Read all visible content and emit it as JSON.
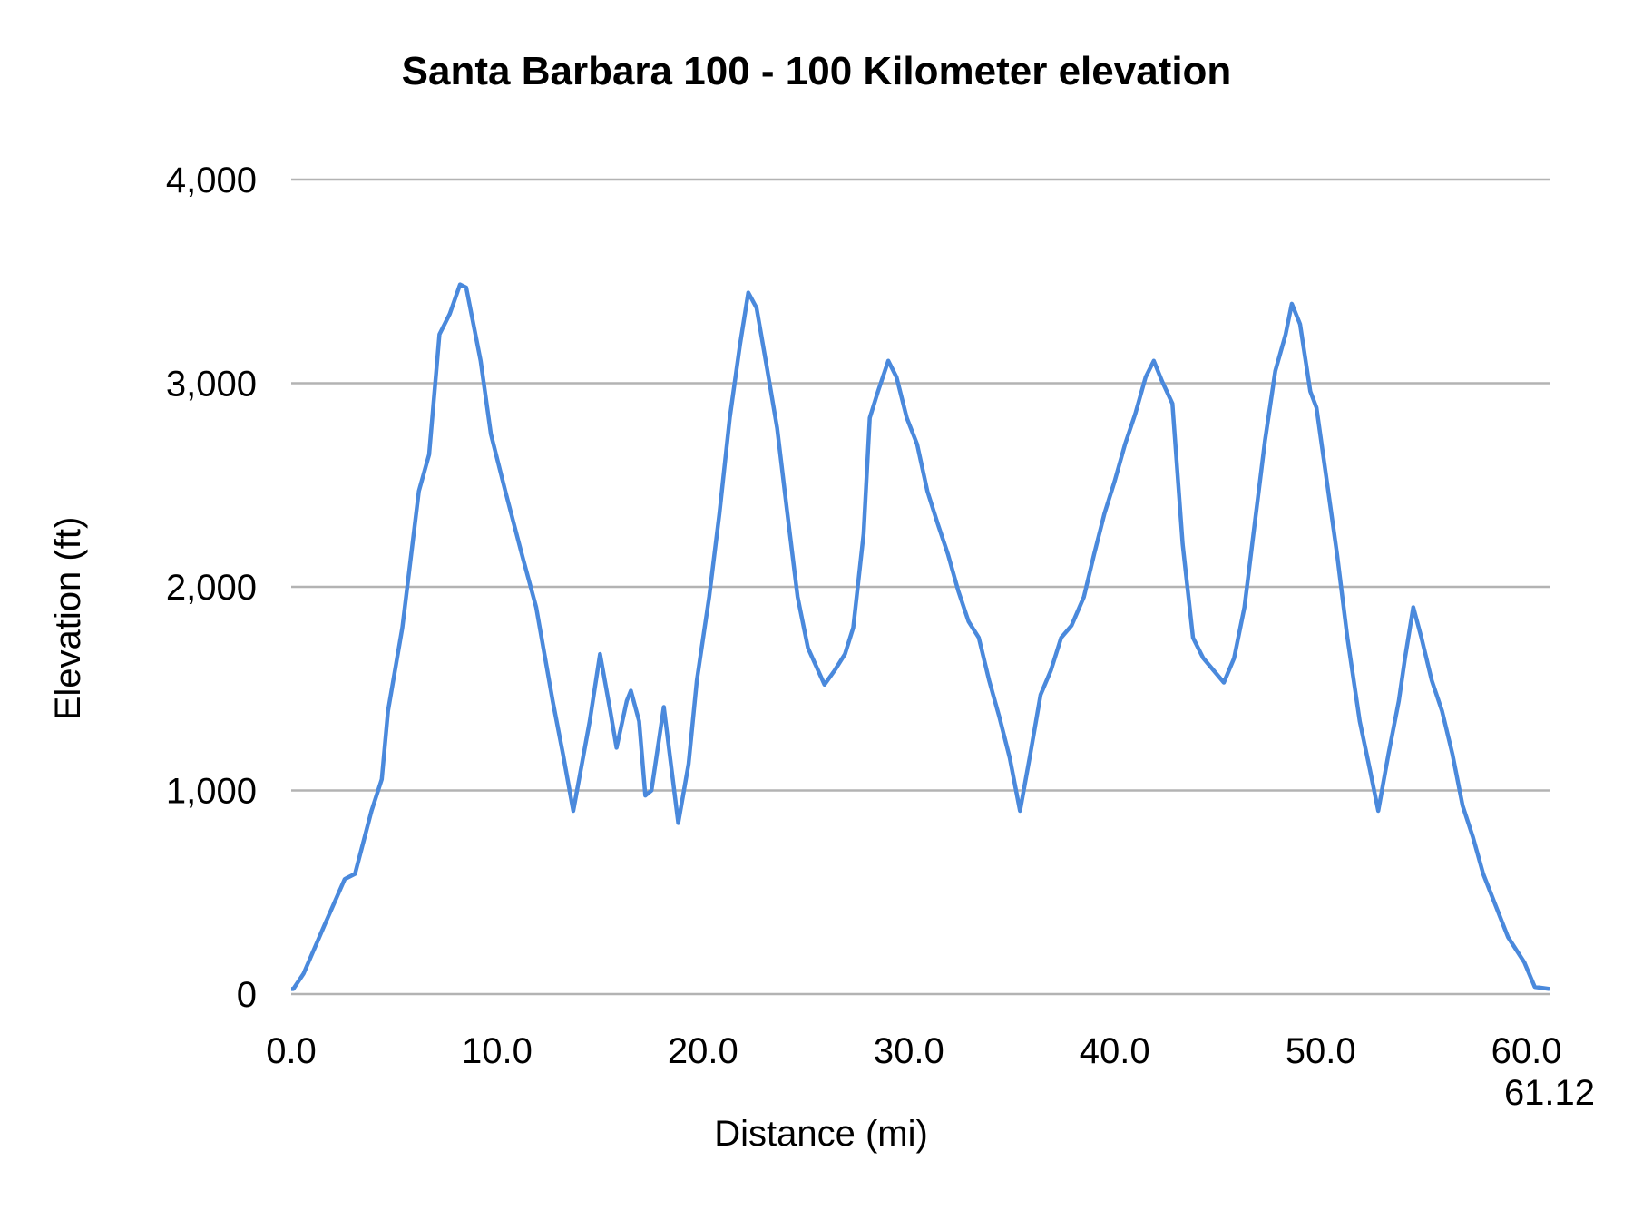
{
  "chart_data": {
    "type": "line",
    "title": "Santa Barbara 100 - 100 Kilometer elevation",
    "xlabel": "Distance (mi)",
    "ylabel": "Elevation (ft)",
    "xlim": [
      0,
      61.12
    ],
    "ylim": [
      0,
      4000
    ],
    "x_ticks": [
      "0.0",
      "10.0",
      "20.0",
      "30.0",
      "40.0",
      "50.0",
      "60.0",
      "61.12"
    ],
    "x_tick_values": [
      0,
      10,
      20,
      30,
      40,
      50,
      60,
      61.12
    ],
    "y_ticks": [
      "0",
      "1,000",
      "2,000",
      "3,000",
      "4,000"
    ],
    "y_tick_values": [
      0,
      1000,
      2000,
      3000,
      4000
    ],
    "grid": "horizontal",
    "legend": "none",
    "line_color": "#4a89dc",
    "grid_color": "#b3b3b3",
    "series": [
      {
        "x": [
          0,
          0.1,
          0.6,
          1.6,
          2.6,
          3.1,
          3.9,
          4.4,
          4.7,
          5.4,
          6.2,
          6.7,
          7.2,
          7.7,
          8.2,
          8.5,
          9.2,
          9.7,
          10.4,
          11.2,
          11.9,
          12.7,
          13.2,
          13.7,
          14.5,
          15.0,
          15.5,
          15.8,
          16.3,
          16.5,
          16.9,
          17.2,
          17.5,
          18.1,
          18.8,
          19.3,
          19.7,
          20.3,
          20.8,
          21.3,
          21.8,
          22.2,
          22.6,
          23.1,
          23.6,
          24.1,
          24.6,
          25.1,
          25.9,
          26.4,
          26.9,
          27.3,
          27.8,
          28.1,
          28.5,
          29.0,
          29.4,
          29.9,
          30.4,
          30.9,
          31.4,
          31.9,
          32.4,
          32.9,
          33.4,
          33.9,
          34.4,
          34.9,
          35.4,
          35.9,
          36.4,
          36.9,
          37.4,
          37.9,
          38.5,
          39.0,
          39.5,
          40.0,
          40.5,
          41.0,
          41.5,
          41.9,
          42.3,
          42.8,
          43.3,
          43.8,
          44.3,
          44.8,
          45.3,
          45.8,
          46.3,
          46.8,
          47.3,
          47.8,
          48.3,
          48.6,
          49.0,
          49.5,
          49.8,
          50.3,
          50.8,
          51.3,
          51.9,
          52.4,
          52.8,
          53.3,
          53.8,
          54.1,
          54.5,
          54.9,
          55.4,
          55.9,
          56.4,
          56.9,
          57.4,
          57.9,
          58.6,
          59.1,
          59.9,
          60.4,
          61.12
        ],
        "y": [
          25,
          25,
          100,
          335,
          565,
          590,
          900,
          1055,
          1390,
          1800,
          2470,
          2650,
          3240,
          3340,
          3485,
          3470,
          3110,
          2750,
          2470,
          2160,
          1900,
          1440,
          1180,
          900,
          1340,
          1670,
          1390,
          1210,
          1440,
          1490,
          1340,
          975,
          1000,
          1410,
          840,
          1130,
          1540,
          1950,
          2360,
          2830,
          3190,
          3445,
          3370,
          3080,
          2780,
          2360,
          1950,
          1700,
          1520,
          1590,
          1670,
          1800,
          2260,
          2830,
          2960,
          3110,
          3030,
          2830,
          2700,
          2470,
          2310,
          2160,
          1980,
          1830,
          1750,
          1540,
          1360,
          1160,
          900,
          1180,
          1470,
          1590,
          1750,
          1810,
          1950,
          2160,
          2360,
          2520,
          2700,
          2850,
          3030,
          3110,
          3010,
          2900,
          2210,
          1750,
          1650,
          1590,
          1530,
          1650,
          1900,
          2310,
          2720,
          3060,
          3240,
          3390,
          3290,
          2960,
          2880,
          2520,
          2160,
          1750,
          1340,
          1100,
          900,
          1180,
          1440,
          1650,
          1900,
          1750,
          1540,
          1390,
          1180,
          925,
          770,
          590,
          410,
          280,
          155,
          35,
          25
        ]
      }
    ]
  }
}
